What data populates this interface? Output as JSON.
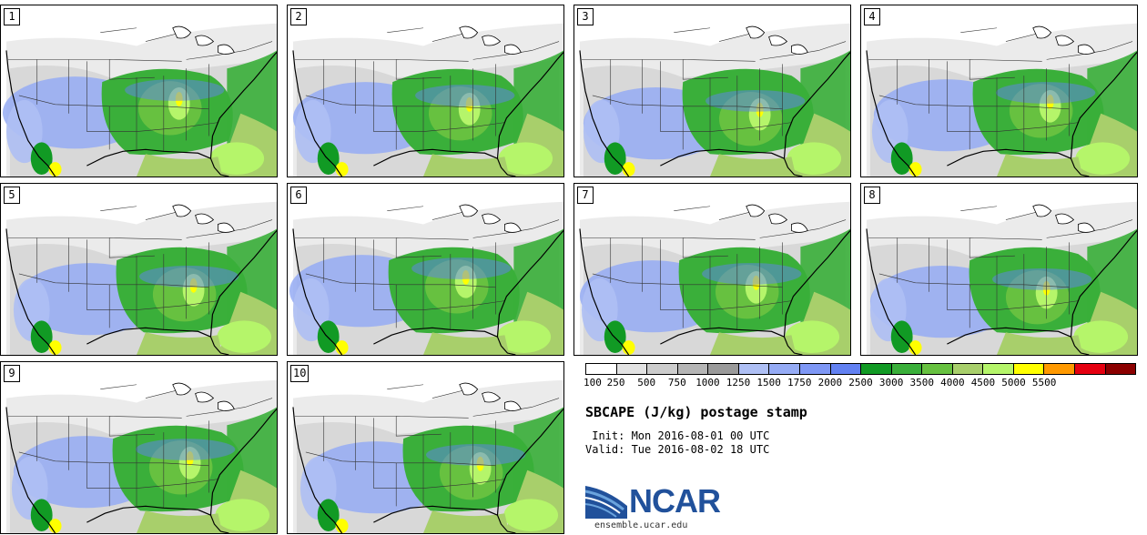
{
  "panels": [
    {
      "label": "1"
    },
    {
      "label": "2"
    },
    {
      "label": "3"
    },
    {
      "label": "4"
    },
    {
      "label": "5"
    },
    {
      "label": "6"
    },
    {
      "label": "7"
    },
    {
      "label": "8"
    },
    {
      "label": "9"
    },
    {
      "label": "10"
    }
  ],
  "legend": {
    "colors": [
      "#ffffff",
      "#e2e2e2",
      "#cccccc",
      "#b5b5b5",
      "#9a9a9a",
      "#aebff4",
      "#95abf5",
      "#7e97f5",
      "#6281f2",
      "#119a24",
      "#3aaf3a",
      "#67c140",
      "#a8cf6b",
      "#b5f56a",
      "#ffff00",
      "#ff9900",
      "#e50010",
      "#8b0000"
    ],
    "ticks": [
      "100",
      "250",
      "500",
      "750",
      "1000",
      "1250",
      "1500",
      "1750",
      "2000",
      "2500",
      "3000",
      "3500",
      "4000",
      "4500",
      "5000",
      "5500"
    ]
  },
  "title": "SBCAPE (J/kg) postage stamp",
  "init_line": " Init: Mon 2016-08-01 00 UTC",
  "valid_line": "Valid: Tue 2016-08-02 18 UTC",
  "logo": {
    "name": "NCAR",
    "url": "ensemble.ucar.edu"
  }
}
